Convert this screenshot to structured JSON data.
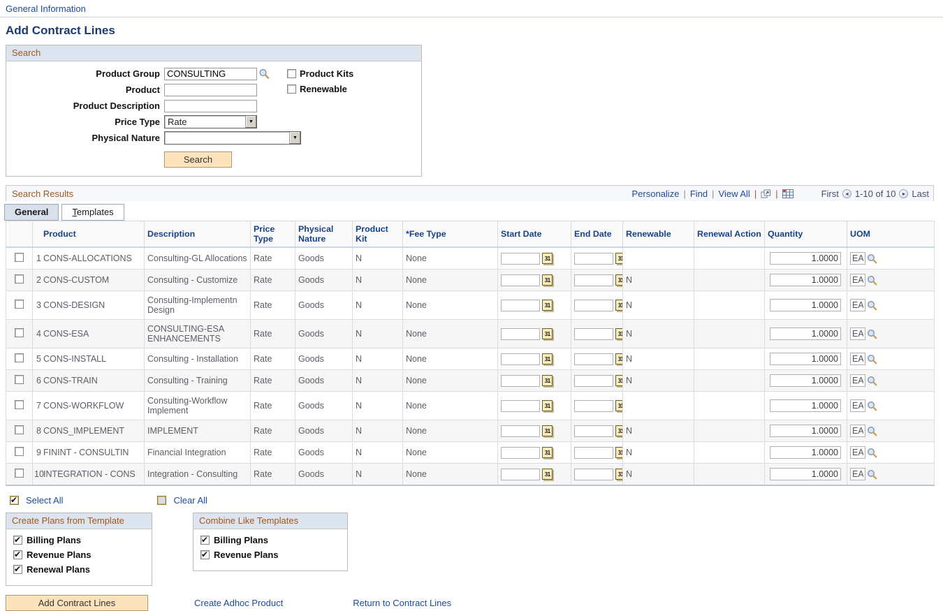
{
  "page": {
    "breadcrumb": "General Information",
    "title": "Add Contract Lines"
  },
  "icons": {
    "calendar_day": "31",
    "dropdown_arrow": "▼",
    "previous_arrow": "◂",
    "next_arrow": "▸",
    "lookup": "magnifier",
    "zoom_grid": "popup-window",
    "download_grid": "spreadsheet-grid"
  },
  "colors": {
    "accent_orange": "#a4571a",
    "link_blue": "#1b4a9e",
    "column_header_blue": "#15428b",
    "title_navy": "#1d3a6e",
    "button_fill": "#fce3bb",
    "active_tab_fill": "#d8e0ec"
  },
  "search": {
    "header": "Search",
    "fields": {
      "product_group": {
        "label": "Product Group",
        "value": "CONSULTING"
      },
      "product": {
        "label": "Product",
        "value": ""
      },
      "product_description": {
        "label": "Product Description",
        "value": ""
      },
      "price_type": {
        "label": "Price Type",
        "value": "Rate"
      },
      "physical_nature": {
        "label": "Physical Nature",
        "value": ""
      }
    },
    "checkboxes": {
      "product_kits": {
        "label": "Product Kits",
        "checked": false
      },
      "renewable": {
        "label": "Renewable",
        "checked": false
      }
    },
    "button": "Search"
  },
  "results": {
    "header": "Search Results",
    "toolbar": {
      "personalize": "Personalize",
      "find": "Find",
      "view_all": "View All"
    },
    "pagination": {
      "first": "First",
      "range": "1-10 of 10",
      "last": "Last"
    },
    "tabs": [
      {
        "label": "General",
        "active": true
      },
      {
        "label": "Templates",
        "active": false
      }
    ],
    "table": {
      "columns": [
        "",
        "Product",
        "Description",
        "Price Type",
        "Physical Nature",
        "Product Kit",
        "*Fee Type",
        "Start Date",
        "End Date",
        "Renewable",
        "Renewal Action",
        "Quantity",
        "UOM"
      ],
      "rows": [
        {
          "num": "1",
          "product": "CONS-ALLOCATIONS",
          "description": "Consulting-GL Allocations",
          "price_type": "Rate",
          "physical_nature": "Goods",
          "product_kit": "N",
          "fee_type": "None",
          "start_date": "",
          "end_date": "",
          "renewable": "",
          "renewal_action": "",
          "quantity": "1.0000",
          "uom": "EA"
        },
        {
          "num": "2",
          "product": "CONS-CUSTOM",
          "description": "Consulting - Customize",
          "price_type": "Rate",
          "physical_nature": "Goods",
          "product_kit": "N",
          "fee_type": "None",
          "start_date": "",
          "end_date": "",
          "renewable": "N",
          "renewal_action": "",
          "quantity": "1.0000",
          "uom": "EA"
        },
        {
          "num": "3",
          "product": "CONS-DESIGN",
          "description": "Consulting-Implementn Design",
          "price_type": "Rate",
          "physical_nature": "Goods",
          "product_kit": "N",
          "fee_type": "None",
          "start_date": "",
          "end_date": "",
          "renewable": "N",
          "renewal_action": "",
          "quantity": "1.0000",
          "uom": "EA"
        },
        {
          "num": "4",
          "product": "CONS-ESA",
          "description": "CONSULTING-ESA ENHANCEMENTS",
          "price_type": "Rate",
          "physical_nature": "Goods",
          "product_kit": "N",
          "fee_type": "None",
          "start_date": "",
          "end_date": "",
          "renewable": "N",
          "renewal_action": "",
          "quantity": "1.0000",
          "uom": "EA"
        },
        {
          "num": "5",
          "product": "CONS-INSTALL",
          "description": "Consulting - Installation",
          "price_type": "Rate",
          "physical_nature": "Goods",
          "product_kit": "N",
          "fee_type": "None",
          "start_date": "",
          "end_date": "",
          "renewable": "N",
          "renewal_action": "",
          "quantity": "1.0000",
          "uom": "EA"
        },
        {
          "num": "6",
          "product": "CONS-TRAIN",
          "description": "Consulting - Training",
          "price_type": "Rate",
          "physical_nature": "Goods",
          "product_kit": "N",
          "fee_type": "None",
          "start_date": "",
          "end_date": "",
          "renewable": "N",
          "renewal_action": "",
          "quantity": "1.0000",
          "uom": "EA"
        },
        {
          "num": "7",
          "product": "CONS-WORKFLOW",
          "description": "Consulting-Workflow Implement",
          "price_type": "Rate",
          "physical_nature": "Goods",
          "product_kit": "N",
          "fee_type": "None",
          "start_date": "",
          "end_date": "",
          "renewable": "",
          "renewal_action": "",
          "quantity": "1.0000",
          "uom": "EA"
        },
        {
          "num": "8",
          "product": "CONS_IMPLEMENT",
          "description": "IMPLEMENT",
          "price_type": "Rate",
          "physical_nature": "Goods",
          "product_kit": "N",
          "fee_type": "None",
          "start_date": "",
          "end_date": "",
          "renewable": "N",
          "renewal_action": "",
          "quantity": "1.0000",
          "uom": "EA"
        },
        {
          "num": "9",
          "product": "FININT - CONSULTIN",
          "description": "Financial Integration",
          "price_type": "Rate",
          "physical_nature": "Goods",
          "product_kit": "N",
          "fee_type": "None",
          "start_date": "",
          "end_date": "",
          "renewable": "N",
          "renewal_action": "",
          "quantity": "1.0000",
          "uom": "EA"
        },
        {
          "num": "10",
          "product": "INTEGRATION - CONS",
          "description": "Integration - Consulting",
          "price_type": "Rate",
          "physical_nature": "Goods",
          "product_kit": "N",
          "fee_type": "None",
          "start_date": "",
          "end_date": "",
          "renewable": "N",
          "renewal_action": "",
          "quantity": "1.0000",
          "uom": "EA"
        }
      ]
    }
  },
  "footer": {
    "select_all": {
      "label": "Select All",
      "checked": true
    },
    "clear_all": {
      "label": "Clear All",
      "checked": false
    },
    "create_plans": {
      "header": "Create Plans from Template",
      "items": [
        {
          "label": "Billing Plans",
          "checked": true
        },
        {
          "label": "Revenue Plans",
          "checked": true
        },
        {
          "label": "Renewal Plans",
          "checked": true
        }
      ]
    },
    "combine_templates": {
      "header": "Combine Like Templates",
      "items": [
        {
          "label": "Billing Plans",
          "checked": true
        },
        {
          "label": "Revenue Plans",
          "checked": true
        }
      ]
    },
    "add_button": "Add Contract Lines",
    "links": {
      "create_adhoc": "Create Adhoc Product",
      "return": "Return to Contract Lines"
    }
  }
}
